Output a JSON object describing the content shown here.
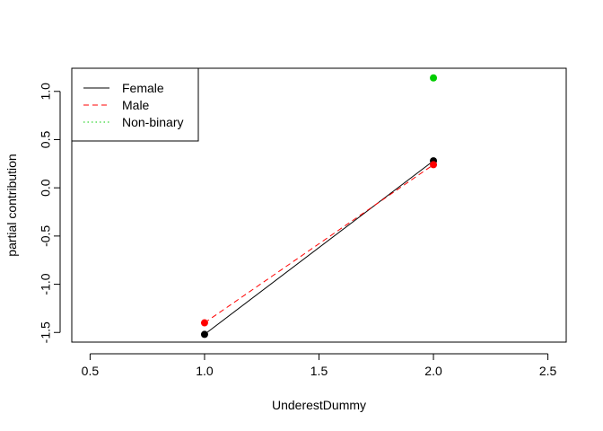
{
  "chart_data": {
    "type": "line",
    "xlabel": "UnderestDummy",
    "ylabel": "partial contribution",
    "xlim": [
      0.42,
      2.58
    ],
    "ylim": [
      -1.6,
      1.24
    ],
    "x_ticks": [
      0.5,
      1.0,
      1.5,
      2.0,
      2.5
    ],
    "x_tick_labels": [
      "0.5",
      "1.0",
      "1.5",
      "2.0",
      "2.5"
    ],
    "y_ticks": [
      -1.5,
      -1.0,
      -0.5,
      0.0,
      0.5,
      1.0
    ],
    "y_tick_labels": [
      "-1.5",
      "-1.0",
      "-0.5",
      "0.0",
      "0.5",
      "1.0"
    ],
    "grid": false,
    "legend_position": "top-left",
    "series": [
      {
        "name": "Female",
        "x": [
          1,
          2
        ],
        "y": [
          -1.52,
          0.28
        ],
        "color": "#000000",
        "dash": "solid"
      },
      {
        "name": "Male",
        "x": [
          1,
          2
        ],
        "y": [
          -1.4,
          0.24
        ],
        "color": "#ff0000",
        "dash": "dashed"
      },
      {
        "name": "Non-binary",
        "x": [
          2
        ],
        "y": [
          1.14
        ],
        "color": "#00cd00",
        "dash": "dotted"
      }
    ]
  }
}
